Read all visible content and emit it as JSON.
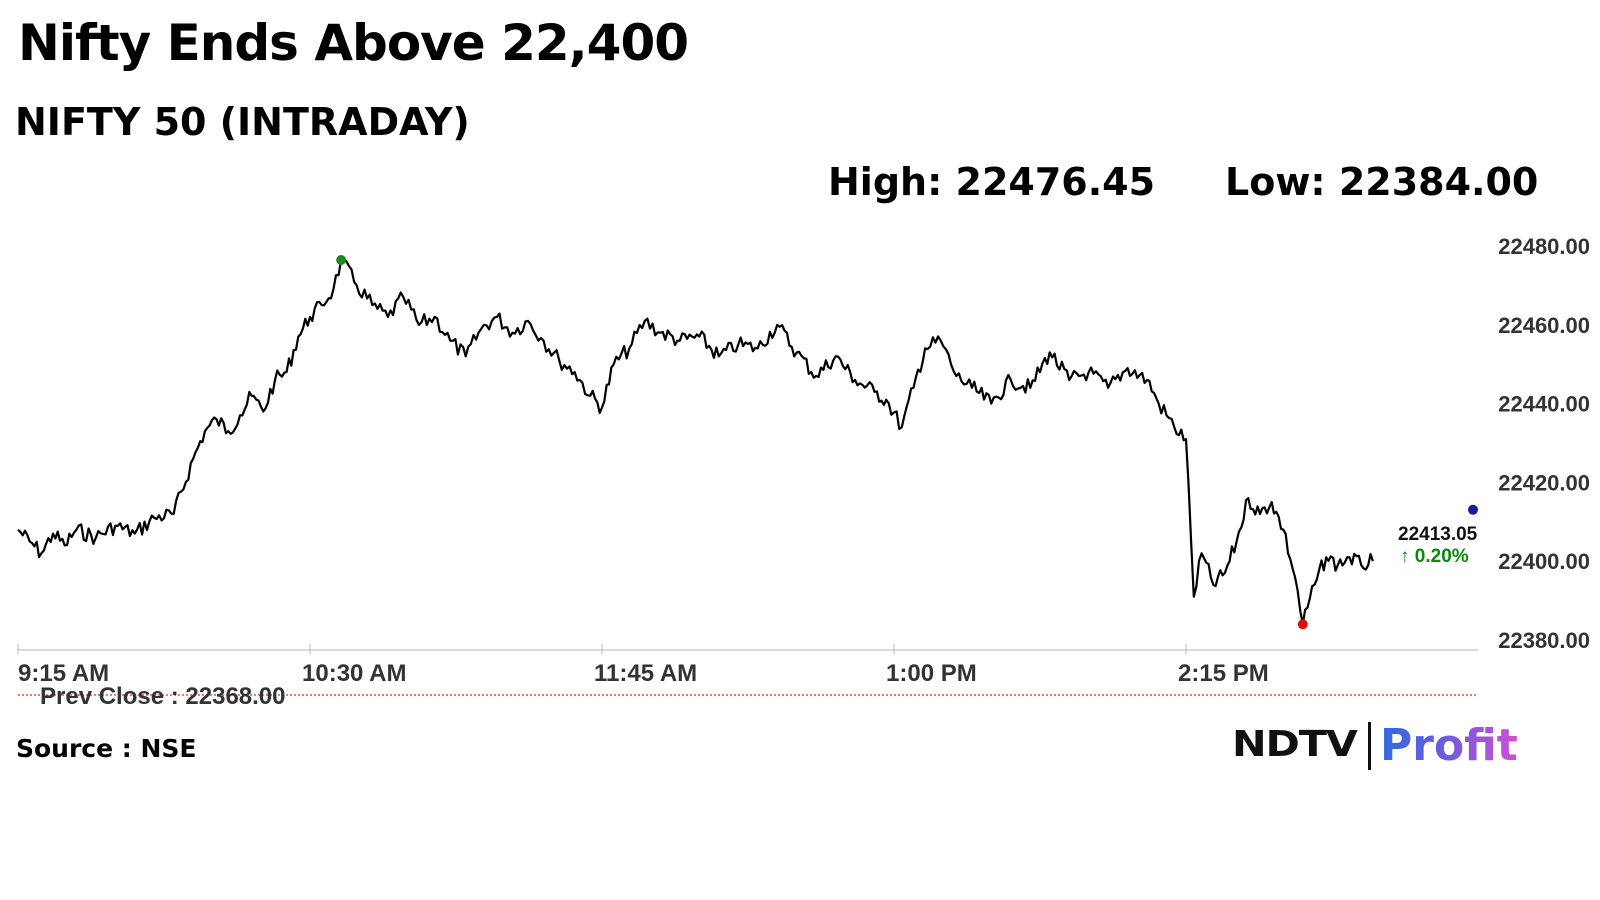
{
  "header": {
    "title": "Nifty Ends Above 22,400",
    "subtitle": "NIFTY 50 (INTRADAY)",
    "high": "High: 22476.45",
    "low": "Low: 22384.00"
  },
  "footer": {
    "source": "Source : NSE",
    "logo_ndtv": "NDTV",
    "logo_profit": "Profit"
  },
  "colors": {
    "line": "#000000",
    "high_marker": "#1a8a1a",
    "low_marker": "#e01010",
    "last_marker": "#1a1aa0",
    "prev_close_line": "#e05050",
    "change_text": "#0a8a0a"
  },
  "chart_data": {
    "type": "line",
    "series": [
      {
        "points": [
          [
            "9:15 AM",
            22408
          ],
          [
            "9:18 AM",
            22405
          ],
          [
            "9:21 AM",
            22402
          ],
          [
            "9:24 AM",
            22407
          ],
          [
            "9:27 AM",
            22404
          ],
          [
            "9:30 AM",
            22408
          ],
          [
            "9:35 AM",
            22406
          ],
          [
            "9:40 AM",
            22409
          ],
          [
            "9:45 AM",
            22407
          ],
          [
            "9:50 AM",
            22411
          ],
          [
            "9:55 AM",
            22412
          ],
          [
            "10:00 AM",
            22426
          ],
          [
            "10:03 AM",
            22433
          ],
          [
            "10:06 AM",
            22436
          ],
          [
            "10:09 AM",
            22433
          ],
          [
            "10:12 AM",
            22437
          ],
          [
            "10:15 AM",
            22442
          ],
          [
            "10:18 AM",
            22438
          ],
          [
            "10:21 AM",
            22446
          ],
          [
            "10:24 AM",
            22448
          ],
          [
            "10:27 AM",
            22457
          ],
          [
            "10:30 AM",
            22462
          ],
          [
            "10:33 AM",
            22465
          ],
          [
            "10:36 AM",
            22469
          ],
          [
            "10:38 AM",
            22476.45
          ],
          [
            "10:42 AM",
            22470
          ],
          [
            "10:46 AM",
            22465
          ],
          [
            "10:50 AM",
            22462
          ],
          [
            "10:54 AM",
            22467
          ],
          [
            "10:58 AM",
            22460
          ],
          [
            "11:02 AM",
            22462
          ],
          [
            "11:06 AM",
            22456
          ],
          [
            "11:10 AM",
            22452
          ],
          [
            "11:14 AM",
            22459
          ],
          [
            "11:18 AM",
            22462
          ],
          [
            "11:22 AM",
            22458
          ],
          [
            "11:26 AM",
            22461
          ],
          [
            "11:30 AM",
            22456
          ],
          [
            "11:34 AM",
            22451
          ],
          [
            "11:38 AM",
            22448
          ],
          [
            "11:42 AM",
            22442
          ],
          [
            "11:45 AM",
            22439
          ],
          [
            "11:48 AM",
            22450
          ],
          [
            "11:52 AM",
            22454
          ],
          [
            "11:56 AM",
            22461
          ],
          [
            "12:00 PM",
            22458
          ],
          [
            "12:05 PM",
            22456
          ],
          [
            "12:10 PM",
            22457
          ],
          [
            "12:15 PM",
            22452
          ],
          [
            "12:20 PM",
            22455
          ],
          [
            "12:25 PM",
            22454
          ],
          [
            "12:30 PM",
            22460
          ],
          [
            "12:35 PM",
            22453
          ],
          [
            "12:40 PM",
            22447
          ],
          [
            "12:45 PM",
            22452
          ],
          [
            "12:50 PM",
            22446
          ],
          [
            "12:55 PM",
            22443
          ],
          [
            "12:58 PM",
            22441
          ],
          [
            "1:02 PM",
            22434
          ],
          [
            "1:05 PM",
            22444
          ],
          [
            "1:08 PM",
            22454
          ],
          [
            "1:12 PM",
            22456
          ],
          [
            "1:16 PM",
            22447
          ],
          [
            "1:20 PM",
            22444
          ],
          [
            "1:25 PM",
            22440
          ],
          [
            "1:30 PM",
            22446
          ],
          [
            "1:35 PM",
            22444
          ],
          [
            "1:40 PM",
            22453
          ],
          [
            "1:45 PM",
            22446
          ],
          [
            "1:50 PM",
            22448
          ],
          [
            "1:55 PM",
            22444
          ],
          [
            "2:00 PM",
            22449
          ],
          [
            "2:05 PM",
            22446
          ],
          [
            "2:08 PM",
            22440
          ],
          [
            "2:12 PM",
            22434
          ],
          [
            "2:15 PM",
            22431
          ],
          [
            "2:17 PM",
            22391
          ],
          [
            "2:19 PM",
            22402
          ],
          [
            "2:22 PM",
            22394
          ],
          [
            "2:25 PM",
            22397
          ],
          [
            "2:28 PM",
            22405
          ],
          [
            "2:31 PM",
            22416
          ],
          [
            "2:34 PM",
            22412
          ],
          [
            "2:37 PM",
            22415
          ],
          [
            "2:40 PM",
            22408
          ],
          [
            "2:43 PM",
            22396
          ],
          [
            "2:45 PM",
            22384
          ],
          [
            "2:48 PM",
            22394
          ],
          [
            "2:51 PM",
            22401
          ],
          [
            "2:54 PM",
            22399
          ],
          [
            "2:57 PM",
            22401
          ],
          [
            "3:00 PM",
            22399
          ],
          [
            "3:03 PM",
            22400
          ]
        ]
      }
    ],
    "x_ticks": [
      "9:15 AM",
      "10:30 AM",
      "11:45 AM",
      "1:00 PM",
      "2:15 PM"
    ],
    "y_ticks": [
      "22480.00",
      "22460.00",
      "22440.00",
      "22420.00",
      "22400.00",
      "22380.00"
    ],
    "ylim": [
      22380,
      22480
    ],
    "xlim": [
      "9:15 AM",
      "3:30 PM"
    ],
    "high": 22476.45,
    "low": 22384.0,
    "last": {
      "value": "22413.05",
      "change": "↑ 0.20%"
    },
    "prev_close": {
      "value": 22368.0,
      "label": "Prev Close : 22368.00"
    },
    "grid": false
  }
}
